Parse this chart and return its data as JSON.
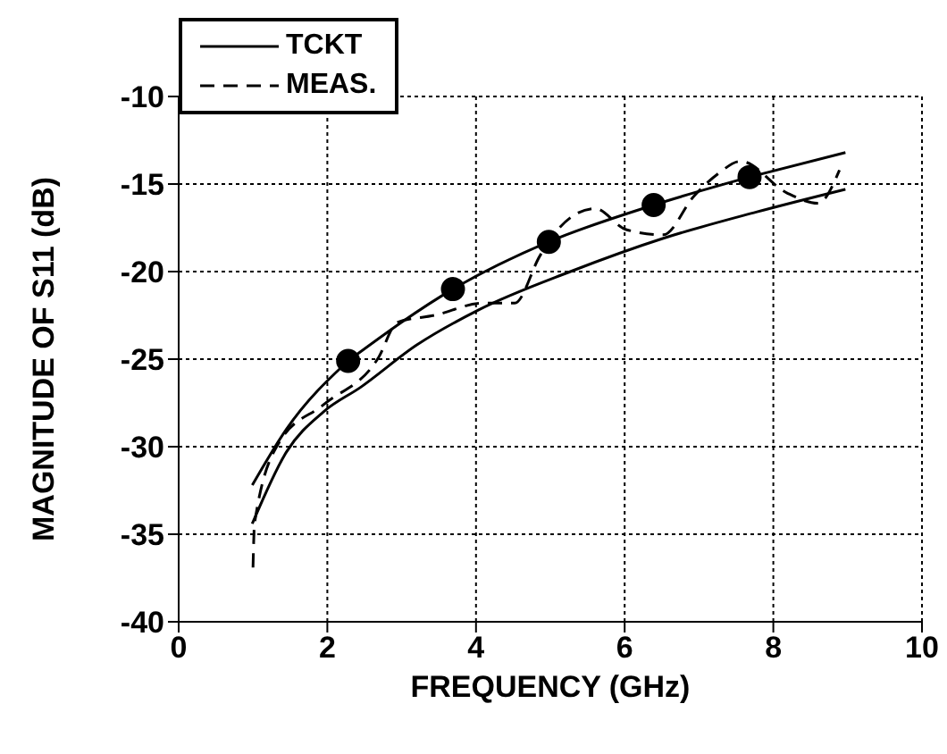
{
  "chart_data": {
    "type": "line",
    "xlabel": "FREQUENCY  (GHz)",
    "ylabel": "MAGNITUDE OF S11 (dB)",
    "xlim": [
      0,
      10
    ],
    "xticks": [
      0,
      2,
      4,
      6,
      8,
      10
    ],
    "ylim": [
      -40,
      -10
    ],
    "yticks": [
      -40,
      -35,
      -30,
      -25,
      -20,
      -15,
      -10
    ],
    "grid": true,
    "legend": "top left",
    "series": [
      {
        "name": "TCKT",
        "color": "#000000",
        "marker": "none",
        "line_style": "solid",
        "x": [
          0.99,
          1.45,
          1.95,
          2.45,
          3.2,
          4.03,
          5.27,
          6.52,
          7.77,
          8.97
        ],
        "values": [
          -34.4,
          -30.3,
          -28.0,
          -26.6,
          -24.2,
          -22.2,
          -20.0,
          -18.1,
          -16.6,
          -15.3
        ]
      },
      {
        "color": "#000000",
        "marker": "none",
        "line_style": "solid",
        "x": [
          0.99,
          1.45,
          2.28
        ],
        "values": [
          -32.2,
          -29.0,
          -25.1
        ]
      },
      {
        "color": "#000000",
        "marker": "circle",
        "line_style": "solid",
        "x": [
          2.28,
          3.69,
          4.98,
          6.39,
          7.68
        ],
        "values": [
          -25.1,
          -21.0,
          -18.3,
          -16.2,
          -14.6
        ]
      },
      {
        "color": "#000000",
        "marker": "none",
        "line_style": "solid",
        "x": [
          7.68,
          8.97
        ],
        "values": [
          -14.6,
          -13.2
        ]
      },
      {
        "name": "MEAS.",
        "color": "#000000",
        "marker": "none",
        "line_style": "dashed",
        "x": [
          1.0,
          1.02,
          1.36,
          1.95,
          2.69,
          2.94,
          3.44,
          4.1,
          4.52,
          4.86,
          5.1,
          5.6,
          6.02,
          6.52,
          6.93,
          7.26,
          7.56,
          8.18,
          8.6,
          8.89
        ],
        "values": [
          -36.9,
          -34.4,
          -29.7,
          -27.6,
          -24.9,
          -22.9,
          -22.5,
          -21.8,
          -21.8,
          -19.1,
          -17.6,
          -16.4,
          -17.6,
          -17.9,
          -15.7,
          -14.4,
          -13.7,
          -15.5,
          -16.1,
          -14.2
        ]
      }
    ]
  }
}
